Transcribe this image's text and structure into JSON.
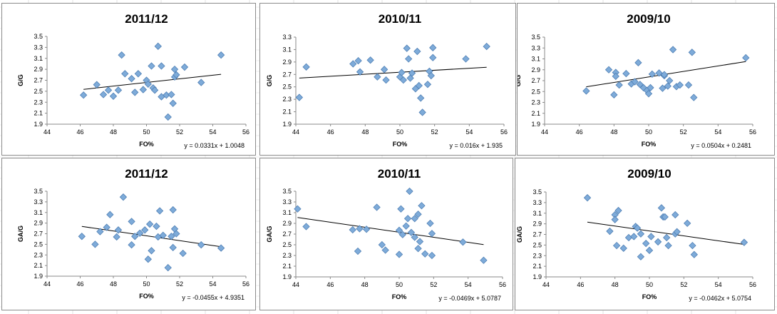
{
  "chart_data": [
    {
      "type": "scatter",
      "title": "2011/12",
      "xlabel": "FO%",
      "ylabel": "G/G",
      "xlim": [
        44,
        56
      ],
      "ylim": [
        1.9,
        3.5
      ],
      "xticks": [
        "44",
        "46",
        "48",
        "50",
        "52",
        "54",
        "56"
      ],
      "yticks": [
        "1.9",
        "2.1",
        "2.3",
        "2.5",
        "2.7",
        "2.9",
        "3.1",
        "3.3",
        "3.5"
      ],
      "equation": "y = 0.0331x + 1.0048",
      "trend": {
        "slope": 0.0331,
        "intercept": 1.0048
      },
      "x": [
        46.2,
        47.0,
        47.4,
        47.7,
        48.0,
        48.3,
        48.7,
        48.5,
        49.1,
        49.3,
        49.5,
        49.8,
        50.0,
        50.1,
        50.3,
        50.4,
        50.5,
        50.7,
        50.9,
        50.9,
        51.2,
        51.3,
        51.6,
        51.5,
        51.7,
        51.7,
        51.8,
        52.3,
        53.3,
        54.5
      ],
      "y": [
        2.43,
        2.62,
        2.44,
        2.52,
        2.41,
        2.52,
        2.82,
        3.16,
        2.73,
        2.48,
        2.82,
        2.53,
        2.7,
        2.63,
        2.96,
        2.56,
        2.52,
        3.32,
        2.96,
        2.4,
        2.43,
        2.03,
        2.28,
        2.44,
        2.76,
        2.9,
        2.8,
        2.94,
        2.66,
        3.16
      ]
    },
    {
      "type": "scatter",
      "title": "2010/11",
      "xlabel": "FO%",
      "ylabel": "G/G",
      "xlim": [
        44,
        56
      ],
      "ylim": [
        1.9,
        3.3
      ],
      "xticks": [
        "44",
        "46",
        "48",
        "50",
        "52",
        "54",
        "56"
      ],
      "yticks": [
        "1.9",
        "2.1",
        "2.3",
        "2.5",
        "2.7",
        "2.9",
        "3.1",
        "3.3"
      ],
      "equation": "y = 0.016x + 1.935",
      "trend": {
        "slope": 0.016,
        "intercept": 1.935
      },
      "x": [
        44.2,
        44.6,
        47.3,
        47.6,
        47.7,
        48.3,
        48.7,
        49.1,
        49.2,
        50.0,
        50.1,
        50.2,
        50.4,
        50.5,
        50.6,
        50.7,
        50.9,
        51.0,
        51.1,
        51.2,
        51.3,
        51.6,
        51.7,
        51.8,
        51.9,
        51.9,
        53.8,
        55.0
      ],
      "y": [
        2.33,
        2.82,
        2.87,
        2.92,
        2.74,
        2.93,
        2.66,
        2.78,
        2.61,
        2.66,
        2.73,
        2.61,
        3.12,
        2.95,
        2.64,
        2.72,
        2.47,
        3.07,
        2.52,
        2.32,
        2.09,
        2.54,
        2.75,
        2.68,
        2.97,
        3.13,
        2.95,
        3.15
      ]
    },
    {
      "type": "scatter",
      "title": "2009/10",
      "xlabel": "FO%",
      "ylabel": "G/G",
      "xlim": [
        44,
        56
      ],
      "ylim": [
        1.9,
        3.5
      ],
      "xticks": [
        "44",
        "46",
        "48",
        "50",
        "52",
        "54",
        "56"
      ],
      "yticks": [
        "1.9",
        "2.1",
        "2.3",
        "2.5",
        "2.7",
        "2.9",
        "3.1",
        "3.3",
        "3.5"
      ],
      "equation": "y = 0.0504x + 0.2481",
      "trend": {
        "slope": 0.0504,
        "intercept": 0.2481
      },
      "x": [
        46.4,
        47.7,
        48.0,
        48.1,
        48.1,
        48.3,
        48.7,
        49.0,
        49.2,
        49.4,
        49.5,
        49.7,
        49.9,
        50.0,
        50.1,
        50.2,
        50.6,
        50.8,
        50.9,
        50.9,
        51.1,
        51.2,
        51.4,
        51.6,
        51.8,
        52.3,
        52.5,
        52.6,
        55.6
      ],
      "y": [
        2.51,
        2.9,
        2.44,
        2.85,
        2.78,
        2.62,
        2.83,
        2.64,
        2.68,
        3.03,
        2.63,
        2.57,
        2.52,
        2.46,
        2.57,
        2.82,
        2.84,
        2.56,
        2.79,
        2.81,
        2.6,
        2.7,
        3.27,
        2.59,
        2.62,
        2.62,
        3.22,
        2.39,
        3.12
      ]
    },
    {
      "type": "scatter",
      "title": "2011/12",
      "xlabel": "FO%",
      "ylabel": "GA/G",
      "xlim": [
        44,
        56
      ],
      "ylim": [
        1.9,
        3.5
      ],
      "xticks": [
        "44",
        "46",
        "48",
        "50",
        "52",
        "54",
        "56"
      ],
      "yticks": [
        "1.9",
        "2.1",
        "2.3",
        "2.5",
        "2.7",
        "2.9",
        "3.1",
        "3.3",
        "3.5"
      ],
      "equation": "y = -0.0455x + 4.9351",
      "trend": {
        "slope": -0.0455,
        "intercept": 4.9351
      },
      "x": [
        46.1,
        46.9,
        47.2,
        47.6,
        47.8,
        48.2,
        48.3,
        48.6,
        49.1,
        49.1,
        49.3,
        49.6,
        49.9,
        50.1,
        50.2,
        50.3,
        50.6,
        50.7,
        50.8,
        51.0,
        51.3,
        51.5,
        51.6,
        51.6,
        51.7,
        51.8,
        52.2,
        53.3,
        54.5
      ],
      "y": [
        2.65,
        2.5,
        2.74,
        2.82,
        3.06,
        2.64,
        2.77,
        3.39,
        2.93,
        2.49,
        2.65,
        2.71,
        2.77,
        2.22,
        2.88,
        2.38,
        2.84,
        2.64,
        3.13,
        2.67,
        2.06,
        2.65,
        3.15,
        2.44,
        2.79,
        2.7,
        2.33,
        2.49,
        2.43
      ]
    },
    {
      "type": "scatter",
      "title": "2010/11",
      "xlabel": "FO%",
      "ylabel": "GA/G",
      "xlim": [
        44,
        56
      ],
      "ylim": [
        1.9,
        3.5
      ],
      "xticks": [
        "44",
        "46",
        "48",
        "50",
        "52",
        "54",
        "56"
      ],
      "yticks": [
        "1.9",
        "2.1",
        "2.3",
        "2.5",
        "2.7",
        "2.9",
        "3.1",
        "3.3",
        "3.5"
      ],
      "equation": "y = -0.0469x + 5.0787",
      "trend": {
        "slope": -0.0469,
        "intercept": 5.0787
      },
      "x": [
        44.1,
        44.6,
        47.3,
        47.6,
        47.7,
        48.1,
        48.7,
        49.0,
        49.2,
        50.0,
        50.0,
        50.1,
        50.2,
        50.4,
        50.5,
        50.6,
        50.7,
        50.9,
        50.9,
        51.1,
        51.1,
        51.2,
        51.3,
        51.5,
        51.8,
        51.9,
        51.9,
        53.7,
        54.9
      ],
      "y": [
        3.17,
        2.84,
        2.78,
        2.38,
        2.8,
        2.79,
        3.2,
        2.5,
        2.4,
        2.77,
        2.32,
        3.17,
        2.69,
        2.85,
        2.99,
        3.5,
        2.73,
        2.64,
        2.99,
        3.07,
        2.43,
        2.56,
        3.23,
        2.33,
        2.9,
        2.3,
        2.71,
        2.55,
        2.21
      ]
    },
    {
      "type": "scatter",
      "title": "2009/10",
      "xlabel": "FO%",
      "ylabel": "GA/G",
      "xlim": [
        44,
        56
      ],
      "ylim": [
        1.9,
        3.5
      ],
      "xticks": [
        "44",
        "46",
        "48",
        "50",
        "52",
        "54",
        "56"
      ],
      "yticks": [
        "1.9",
        "2.1",
        "2.3",
        "2.5",
        "2.7",
        "2.9",
        "3.1",
        "3.3",
        "3.5"
      ],
      "equation": "y = -0.0462x + 5.0754",
      "trend": {
        "slope": -0.0462,
        "intercept": 5.0754
      },
      "x": [
        46.4,
        47.7,
        48.0,
        48.0,
        48.1,
        48.2,
        48.5,
        48.8,
        49.1,
        49.2,
        49.3,
        49.5,
        49.5,
        49.8,
        50.0,
        50.1,
        50.5,
        50.7,
        50.8,
        50.9,
        51.0,
        51.1,
        51.5,
        51.5,
        51.6,
        52.2,
        52.5,
        52.6,
        55.5
      ],
      "y": [
        3.39,
        2.76,
        3.07,
        2.98,
        2.49,
        3.15,
        2.44,
        2.64,
        2.66,
        2.85,
        2.82,
        2.28,
        2.71,
        2.53,
        2.4,
        2.66,
        2.56,
        3.2,
        3.03,
        3.03,
        2.64,
        2.49,
        3.07,
        2.71,
        2.75,
        2.91,
        2.49,
        2.32,
        2.55
      ]
    }
  ]
}
